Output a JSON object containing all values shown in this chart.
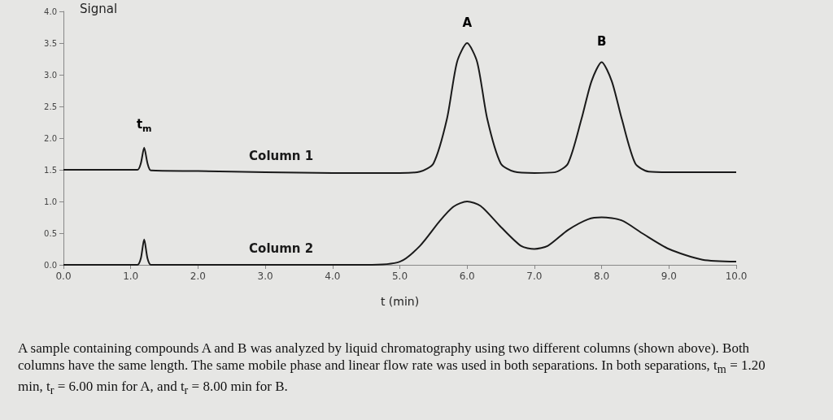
{
  "chart_data": {
    "type": "line",
    "xlabel": "t (min)",
    "ylabel": "Signal",
    "xlim": [
      0,
      10
    ],
    "xticks": [
      {
        "value": 0,
        "label": "0.0"
      },
      {
        "value": 1,
        "label": "1.0"
      },
      {
        "value": 2,
        "label": "2.0"
      },
      {
        "value": 3,
        "label": "3.0"
      },
      {
        "value": 4,
        "label": "4.0"
      },
      {
        "value": 5,
        "label": "5.0"
      },
      {
        "value": 6,
        "label": "6.0"
      },
      {
        "value": 7,
        "label": "7.0"
      },
      {
        "value": 8,
        "label": "8.0"
      },
      {
        "value": 9,
        "label": "9.0"
      },
      {
        "value": 10,
        "label": "10.0"
      }
    ],
    "ylim": [
      0,
      4
    ],
    "yticks": [
      {
        "value": 0,
        "label": "0.0"
      },
      {
        "value": 0.5,
        "label": "0.5"
      },
      {
        "value": 1,
        "label": "1.0"
      },
      {
        "value": 1.5,
        "label": "1.5"
      },
      {
        "value": 2,
        "label": "2.0"
      },
      {
        "value": 2.5,
        "label": "2.5"
      },
      {
        "value": 3,
        "label": "3.0"
      },
      {
        "value": 3.5,
        "label": "3.5"
      },
      {
        "value": 4,
        "label": "4.0"
      }
    ],
    "grid": false,
    "legend": false,
    "marker": "none",
    "line_style": "solid",
    "series": [
      {
        "name": "Column 1",
        "color": "#1a1a1a",
        "x": [
          0,
          1.1,
          1.15,
          1.2,
          1.25,
          1.3,
          2,
          3,
          4,
          5,
          5.3,
          5.5,
          5.7,
          5.85,
          6.0,
          6.15,
          6.3,
          6.5,
          6.7,
          7,
          7.3,
          7.5,
          7.7,
          7.85,
          8.0,
          8.15,
          8.3,
          8.5,
          8.7,
          9,
          10
        ],
        "values": [
          1.5,
          1.5,
          1.6,
          1.85,
          1.6,
          1.49,
          1.48,
          1.46,
          1.45,
          1.45,
          1.47,
          1.6,
          2.3,
          3.2,
          3.5,
          3.2,
          2.3,
          1.6,
          1.47,
          1.45,
          1.46,
          1.6,
          2.3,
          2.9,
          3.2,
          2.9,
          2.3,
          1.6,
          1.47,
          1.46,
          1.46
        ]
      },
      {
        "name": "Column 2",
        "color": "#1a1a1a",
        "x": [
          0,
          1.1,
          1.15,
          1.2,
          1.25,
          1.3,
          2,
          3,
          4,
          4.5,
          5,
          5.3,
          5.6,
          5.8,
          6,
          6.2,
          6.5,
          6.8,
          7,
          7.2,
          7.5,
          7.8,
          8,
          8.3,
          8.6,
          9,
          9.5,
          10
        ],
        "values": [
          0,
          0,
          0.1,
          0.4,
          0.1,
          0,
          0,
          0,
          0,
          0,
          0.05,
          0.3,
          0.7,
          0.92,
          1.0,
          0.93,
          0.6,
          0.3,
          0.25,
          0.3,
          0.55,
          0.72,
          0.75,
          0.7,
          0.5,
          0.25,
          0.08,
          0.05
        ]
      }
    ],
    "annotations": [
      {
        "text": "t$_{m}$",
        "x": 1.2,
        "y": 1.85
      },
      {
        "text": "A",
        "x": 6.0,
        "y": 3.5
      },
      {
        "text": "B",
        "x": 8.0,
        "y": 3.2
      },
      "A sample containing compounds A and B was analyzed by liquid chromatography using two different columns (shown above).  Both columns have the same length.  The same mobile phase and linear flow rate was used in both separations.  In both separations, t$_{m}$ = 1.20 min,  t$_{r}$ = 6.00 min for A, and t$_{r}$ = 8.00 min for B."
    ]
  }
}
